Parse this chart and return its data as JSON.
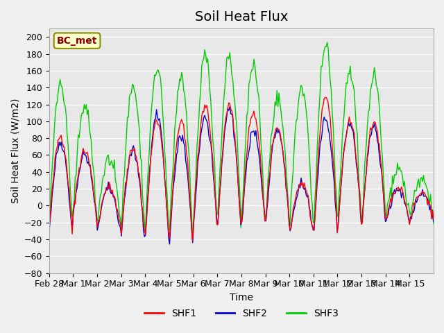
{
  "title": "Soil Heat Flux",
  "xlabel": "Time",
  "ylabel": "Soil Heat Flux (W/m2)",
  "ylim": [
    -80,
    210
  ],
  "yticks": [
    -80,
    -60,
    -40,
    -20,
    0,
    20,
    40,
    60,
    80,
    100,
    120,
    140,
    160,
    180,
    200
  ],
  "xtick_labels": [
    "Feb 28",
    "Mar 1",
    "Mar 2",
    "Mar 3",
    "Mar 4",
    "Mar 5",
    "Mar 6",
    "Mar 7",
    "Mar 8",
    "Mar 9",
    "Mar 10",
    "Mar 11",
    "Mar 12",
    "Mar 13",
    "Mar 14",
    "Mar 15"
  ],
  "annotation": "BC_met",
  "annotation_color": "#8B0000",
  "annotation_bg": "#FFFFCC",
  "line_colors": {
    "SHF1": "#FF0000",
    "SHF2": "#0000CC",
    "SHF3": "#00CC00"
  },
  "legend_labels": [
    "SHF1",
    "SHF2",
    "SHF3"
  ],
  "axes_bg": "#E8E8E8",
  "grid_color": "#FFFFFF",
  "title_fontsize": 14,
  "label_fontsize": 10,
  "tick_fontsize": 9,
  "peak_shf3": [
    145,
    120,
    55,
    142,
    165,
    148,
    178,
    176,
    170,
    128,
    140,
    192,
    160,
    155,
    45,
    30
  ],
  "peak_shf1": [
    83,
    65,
    22,
    68,
    100,
    98,
    120,
    120,
    110,
    93,
    27,
    130,
    100,
    100,
    20,
    15
  ],
  "peak_shf2": [
    75,
    60,
    20,
    65,
    108,
    82,
    105,
    115,
    88,
    90,
    25,
    103,
    97,
    95,
    18,
    12
  ],
  "night_min": [
    -42,
    -15,
    -38,
    -45,
    -50,
    -58,
    -28,
    -30,
    -28,
    -23,
    -42,
    -40,
    -30,
    -25,
    -25,
    -22
  ]
}
